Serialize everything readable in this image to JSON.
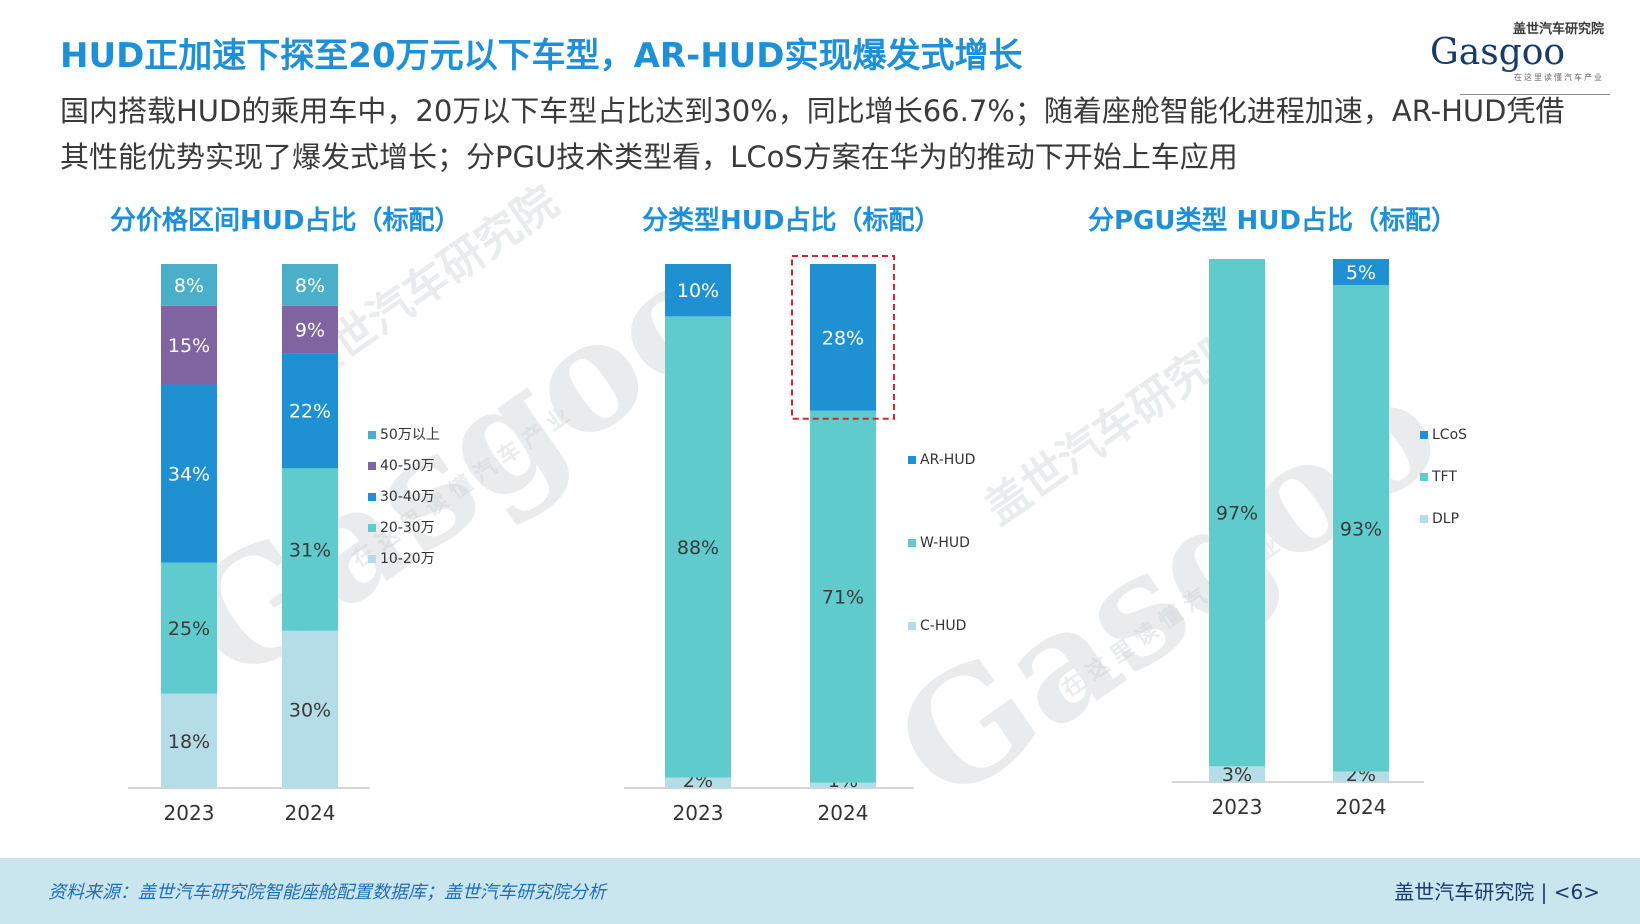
{
  "title": "HUD正加速下探至20万元以下车型，AR-HUD实现爆发式增长",
  "subtitle": "国内搭载HUD的乘用车中，20万以下车型占比达到30%，同比增长66.7%；随着座舱智能化进程加速，AR-HUD凭借其性能优势实现了爆发式增长；分PGU技术类型看，LCoS方案在华为的推动下开始上车应用",
  "logo": {
    "top": "盖世汽车研究院",
    "main": "Gasgoo",
    "sub": "在这里读懂汽车产业"
  },
  "watermark": {
    "brand": "Gasgoo",
    "cn": "盖世汽车研究院",
    "slogan": "在 这 里 读 懂 汽 车 产 业"
  },
  "colors": {
    "c50plus": "#4bafc9",
    "c40_50": "#8064a2",
    "c30_40": "#1f91d3",
    "c20_30": "#5fcbcd",
    "c10_20": "#b4dde7"
  },
  "chart_data": [
    {
      "type": "bar",
      "title": "分价格区间HUD占比（标配）",
      "categories": [
        "2023",
        "2024"
      ],
      "series": [
        {
          "name": "10-20万",
          "values": [
            18,
            30
          ],
          "labels": [
            "18%",
            "30%"
          ],
          "color": "#b4dde7"
        },
        {
          "name": "20-30万",
          "values": [
            25,
            31
          ],
          "labels": [
            "25%",
            "31%"
          ],
          "color": "#5fcbcd"
        },
        {
          "name": "30-40万",
          "values": [
            34,
            22
          ],
          "labels": [
            "34%",
            "22%"
          ],
          "color": "#1f91d3"
        },
        {
          "name": "40-50万",
          "values": [
            15,
            9
          ],
          "labels": [
            "15%",
            "9%"
          ],
          "color": "#8064a2"
        },
        {
          "name": "50万以上",
          "values": [
            8,
            8
          ],
          "labels": [
            "8%",
            "8%"
          ],
          "color": "#4bafc9"
        }
      ],
      "legend_order": [
        "50万以上",
        "40-50万",
        "30-40万",
        "20-30万",
        "10-20万"
      ],
      "legend_placement": "right",
      "ylim": [
        0,
        100
      ]
    },
    {
      "type": "bar",
      "title": "分类型HUD占比（标配）",
      "categories": [
        "2023",
        "2024"
      ],
      "series": [
        {
          "name": "C-HUD",
          "values": [
            2,
            1
          ],
          "labels": [
            "2%",
            "1%"
          ],
          "color": "#b4dde7"
        },
        {
          "name": "W-HUD",
          "values": [
            88,
            71
          ],
          "labels": [
            "88%",
            "71%"
          ],
          "color": "#5fcbcd"
        },
        {
          "name": "AR-HUD",
          "values": [
            10,
            28
          ],
          "labels": [
            "10%",
            "28%"
          ],
          "color": "#1f91d3"
        }
      ],
      "legend_order": [
        "AR-HUD",
        "W-HUD",
        "C-HUD"
      ],
      "legend_placement": "right",
      "highlight": {
        "category": "2024",
        "series": "AR-HUD",
        "style": "red dashed box"
      },
      "ylim": [
        0,
        100
      ]
    },
    {
      "type": "bar",
      "title": "分PGU类型 HUD占比（标配）",
      "categories": [
        "2023",
        "2024"
      ],
      "series": [
        {
          "name": "DLP",
          "values": [
            3,
            2
          ],
          "labels": [
            "3%",
            "2%"
          ],
          "color": "#b4dde7"
        },
        {
          "name": "TFT",
          "values": [
            97,
            93
          ],
          "labels": [
            "97%",
            "93%"
          ],
          "color": "#5fcbcd"
        },
        {
          "name": "LCoS",
          "values": [
            0,
            5
          ],
          "labels": [
            "",
            "5%"
          ],
          "color": "#1f91d3"
        }
      ],
      "legend_order": [
        "LCoS",
        "TFT",
        "DLP"
      ],
      "legend_placement": "right",
      "ylim": [
        0,
        100
      ]
    }
  ],
  "footer": {
    "source": "资料来源：盖世汽车研究院智能座舱配置数据库；盖世汽车研究院分析",
    "page": "盖世汽车研究院 | <6>"
  }
}
